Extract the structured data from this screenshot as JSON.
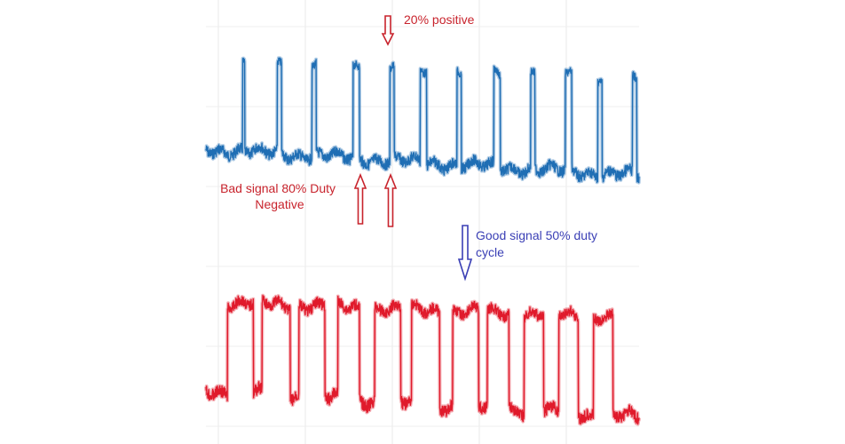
{
  "chart_data": {
    "type": "line",
    "title": "",
    "xlabel": "",
    "ylabel": "",
    "grid": true,
    "legend": "none",
    "series": [
      {
        "color": "#1f6eb4",
        "description_levels": "low/high square wave",
        "pulses": [
          {
            "rise": 0.085,
            "fall": 0.09
          },
          {
            "rise": 0.165,
            "fall": 0.175
          },
          {
            "rise": 0.245,
            "fall": 0.255
          },
          {
            "rise": 0.34,
            "fall": 0.355
          },
          {
            "rise": 0.425,
            "fall": 0.435
          },
          {
            "rise": 0.495,
            "fall": 0.51
          },
          {
            "rise": 0.58,
            "fall": 0.59
          },
          {
            "rise": 0.665,
            "fall": 0.68
          },
          {
            "rise": 0.75,
            "fall": 0.76
          },
          {
            "rise": 0.83,
            "fall": 0.845
          },
          {
            "rise": 0.905,
            "fall": 0.915
          },
          {
            "rise": 0.985,
            "fall": 0.995
          }
        ]
      },
      {
        "color": "#e01a2b",
        "pulses": [
          {
            "rise": 0.05,
            "fall": 0.11
          },
          {
            "rise": 0.13,
            "fall": 0.195
          },
          {
            "rise": 0.215,
            "fall": 0.275
          },
          {
            "rise": 0.305,
            "fall": 0.355
          },
          {
            "rise": 0.39,
            "fall": 0.45
          },
          {
            "rise": 0.475,
            "fall": 0.54
          },
          {
            "rise": 0.57,
            "fall": 0.63
          },
          {
            "rise": 0.65,
            "fall": 0.7
          },
          {
            "rise": 0.735,
            "fall": 0.78
          },
          {
            "rise": 0.815,
            "fall": 0.86
          },
          {
            "rise": 0.895,
            "fall": 0.94
          }
        ]
      }
    ],
    "annotations": [
      {
        "text": "20% positive",
        "color": "#c8232c"
      },
      {
        "text_lines": [
          "Bad signal 80% Duty",
          "Negative"
        ],
        "color": "#c8232c"
      },
      {
        "text_lines": [
          "Good signal 50% duty",
          "cycle"
        ],
        "color": "#3a3fb5"
      }
    ]
  }
}
